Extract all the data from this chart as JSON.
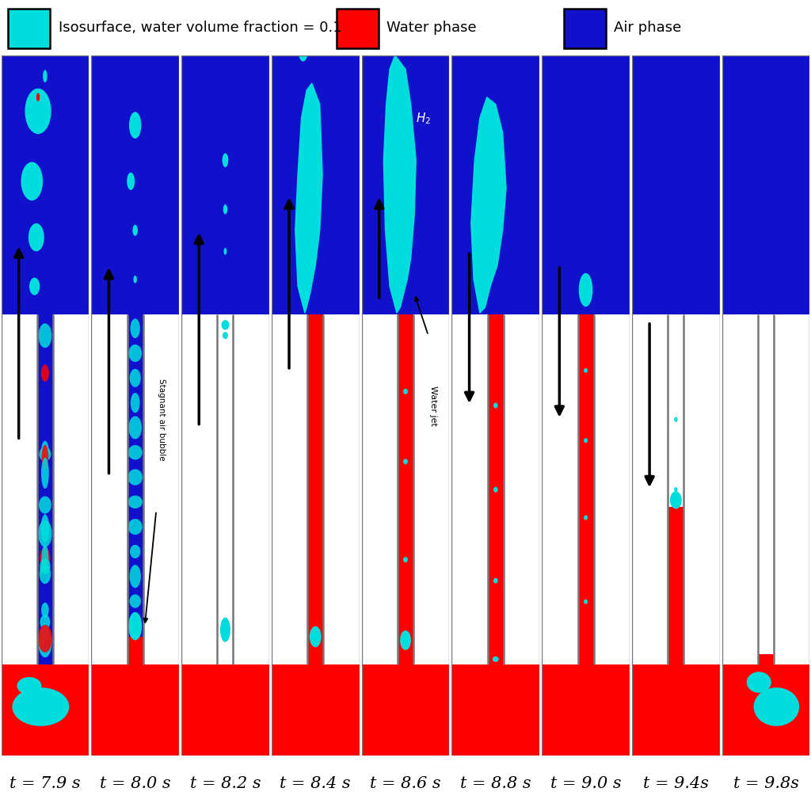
{
  "legend_items": [
    {
      "label": "Isosurface, water volume fraction = 0.1",
      "color": "#00DDDD"
    },
    {
      "label": "Water phase",
      "color": "#FF0000"
    },
    {
      "label": "Air phase",
      "color": "#1111CC"
    }
  ],
  "time_labels": [
    "t = 7.9 s",
    "t = 8.0 s",
    "t = 8.2 s",
    "t = 8.4 s",
    "t = 8.6 s",
    "t = 8.8 s",
    "t = 9.0 s",
    "t = 9.4s",
    "t = 9.8s"
  ],
  "background_color": "#FFFFFF",
  "air_color": "#1111CC",
  "water_color": "#FF0000",
  "iso_color": "#00DDDD",
  "n_panels": 9,
  "legend_fontsize": 13,
  "time_fontsize": 15
}
